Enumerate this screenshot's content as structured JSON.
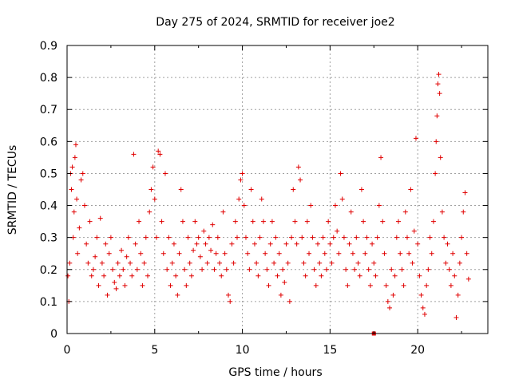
{
  "chart_data": {
    "type": "scatter",
    "title": "Day 275 of 2024, SRMTID for receiver joe2",
    "xlabel": "GPS time / hours",
    "ylabel": "SRMTID / TECUs",
    "xlim": [
      0,
      24
    ],
    "ylim": [
      0,
      0.9
    ],
    "xticks": [
      0,
      5,
      10,
      15,
      20
    ],
    "yticks": [
      0,
      0.1,
      0.2,
      0.3,
      0.4,
      0.5,
      0.6,
      0.7,
      0.8,
      0.9
    ],
    "xtick_labels": [
      "0",
      "5",
      "10",
      "15",
      "20"
    ],
    "ytick_labels": [
      "0",
      "0.1",
      "0.2",
      "0.3",
      "0.4",
      "0.5",
      "0.6",
      "0.7",
      "0.8",
      "0.9"
    ],
    "grid": true,
    "marker": "+",
    "color": "#e00000",
    "series": [
      {
        "name": "SRMTID",
        "points": [
          [
            0.05,
            0.18
          ],
          [
            0.1,
            0.1
          ],
          [
            0.15,
            0.22
          ],
          [
            0.2,
            0.5
          ],
          [
            0.25,
            0.45
          ],
          [
            0.3,
            0.52
          ],
          [
            0.35,
            0.3
          ],
          [
            0.4,
            0.38
          ],
          [
            0.45,
            0.55
          ],
          [
            0.5,
            0.59
          ],
          [
            0.55,
            0.42
          ],
          [
            0.6,
            0.25
          ],
          [
            0.7,
            0.33
          ],
          [
            0.8,
            0.48
          ],
          [
            0.9,
            0.5
          ],
          [
            1.0,
            0.4
          ],
          [
            1.1,
            0.28
          ],
          [
            1.2,
            0.22
          ],
          [
            1.3,
            0.35
          ],
          [
            1.4,
            0.18
          ],
          [
            1.5,
            0.2
          ],
          [
            1.6,
            0.24
          ],
          [
            1.7,
            0.3
          ],
          [
            1.8,
            0.15
          ],
          [
            1.9,
            0.36
          ],
          [
            2.0,
            0.22
          ],
          [
            2.1,
            0.18
          ],
          [
            2.2,
            0.28
          ],
          [
            2.3,
            0.12
          ],
          [
            2.4,
            0.25
          ],
          [
            2.5,
            0.3
          ],
          [
            2.6,
            0.2
          ],
          [
            2.7,
            0.16
          ],
          [
            2.8,
            0.14
          ],
          [
            2.9,
            0.22
          ],
          [
            3.0,
            0.18
          ],
          [
            3.1,
            0.26
          ],
          [
            3.2,
            0.2
          ],
          [
            3.3,
            0.15
          ],
          [
            3.4,
            0.24
          ],
          [
            3.5,
            0.3
          ],
          [
            3.6,
            0.22
          ],
          [
            3.7,
            0.18
          ],
          [
            3.8,
            0.56
          ],
          [
            3.9,
            0.28
          ],
          [
            4.0,
            0.2
          ],
          [
            4.1,
            0.35
          ],
          [
            4.2,
            0.25
          ],
          [
            4.3,
            0.15
          ],
          [
            4.4,
            0.22
          ],
          [
            4.5,
            0.3
          ],
          [
            4.6,
            0.18
          ],
          [
            4.7,
            0.38
          ],
          [
            4.8,
            0.45
          ],
          [
            4.9,
            0.52
          ],
          [
            5.0,
            0.42
          ],
          [
            5.1,
            0.3
          ],
          [
            5.2,
            0.57
          ],
          [
            5.3,
            0.56
          ],
          [
            5.4,
            0.35
          ],
          [
            5.5,
            0.25
          ],
          [
            5.6,
            0.5
          ],
          [
            5.7,
            0.2
          ],
          [
            5.8,
            0.3
          ],
          [
            5.9,
            0.15
          ],
          [
            6.0,
            0.22
          ],
          [
            6.1,
            0.28
          ],
          [
            6.2,
            0.18
          ],
          [
            6.3,
            0.12
          ],
          [
            6.4,
            0.25
          ],
          [
            6.5,
            0.45
          ],
          [
            6.6,
            0.35
          ],
          [
            6.7,
            0.2
          ],
          [
            6.8,
            0.15
          ],
          [
            6.9,
            0.3
          ],
          [
            7.0,
            0.22
          ],
          [
            7.1,
            0.18
          ],
          [
            7.2,
            0.26
          ],
          [
            7.3,
            0.35
          ],
          [
            7.4,
            0.28
          ],
          [
            7.5,
            0.3
          ],
          [
            7.6,
            0.24
          ],
          [
            7.7,
            0.2
          ],
          [
            7.8,
            0.32
          ],
          [
            7.9,
            0.28
          ],
          [
            8.0,
            0.22
          ],
          [
            8.1,
            0.3
          ],
          [
            8.2,
            0.26
          ],
          [
            8.3,
            0.34
          ],
          [
            8.4,
            0.2
          ],
          [
            8.5,
            0.25
          ],
          [
            8.6,
            0.3
          ],
          [
            8.7,
            0.22
          ],
          [
            8.8,
            0.18
          ],
          [
            8.9,
            0.38
          ],
          [
            9.0,
            0.25
          ],
          [
            9.1,
            0.2
          ],
          [
            9.2,
            0.12
          ],
          [
            9.3,
            0.1
          ],
          [
            9.4,
            0.28
          ],
          [
            9.5,
            0.22
          ],
          [
            9.6,
            0.35
          ],
          [
            9.7,
            0.3
          ],
          [
            9.8,
            0.42
          ],
          [
            9.9,
            0.48
          ],
          [
            10.0,
            0.5
          ],
          [
            10.1,
            0.4
          ],
          [
            10.2,
            0.3
          ],
          [
            10.3,
            0.25
          ],
          [
            10.4,
            0.2
          ],
          [
            10.5,
            0.45
          ],
          [
            10.6,
            0.35
          ],
          [
            10.7,
            0.28
          ],
          [
            10.8,
            0.22
          ],
          [
            10.9,
            0.18
          ],
          [
            11.0,
            0.3
          ],
          [
            11.1,
            0.42
          ],
          [
            11.2,
            0.35
          ],
          [
            11.3,
            0.25
          ],
          [
            11.4,
            0.2
          ],
          [
            11.5,
            0.15
          ],
          [
            11.6,
            0.28
          ],
          [
            11.7,
            0.35
          ],
          [
            11.8,
            0.22
          ],
          [
            11.9,
            0.3
          ],
          [
            12.0,
            0.18
          ],
          [
            12.1,
            0.25
          ],
          [
            12.2,
            0.12
          ],
          [
            12.3,
            0.2
          ],
          [
            12.4,
            0.16
          ],
          [
            12.5,
            0.28
          ],
          [
            12.6,
            0.22
          ],
          [
            12.7,
            0.1
          ],
          [
            12.8,
            0.3
          ],
          [
            12.9,
            0.45
          ],
          [
            13.0,
            0.35
          ],
          [
            13.1,
            0.28
          ],
          [
            13.2,
            0.52
          ],
          [
            13.3,
            0.48
          ],
          [
            13.4,
            0.3
          ],
          [
            13.5,
            0.22
          ],
          [
            13.6,
            0.18
          ],
          [
            13.7,
            0.35
          ],
          [
            13.8,
            0.25
          ],
          [
            13.9,
            0.4
          ],
          [
            14.0,
            0.3
          ],
          [
            14.1,
            0.2
          ],
          [
            14.2,
            0.15
          ],
          [
            14.3,
            0.28
          ],
          [
            14.4,
            0.22
          ],
          [
            14.5,
            0.18
          ],
          [
            14.6,
            0.3
          ],
          [
            14.7,
            0.25
          ],
          [
            14.8,
            0.2
          ],
          [
            14.9,
            0.35
          ],
          [
            15.0,
            0.28
          ],
          [
            15.1,
            0.22
          ],
          [
            15.2,
            0.3
          ],
          [
            15.3,
            0.4
          ],
          [
            15.4,
            0.32
          ],
          [
            15.5,
            0.25
          ],
          [
            15.6,
            0.5
          ],
          [
            15.7,
            0.42
          ],
          [
            15.8,
            0.3
          ],
          [
            15.9,
            0.2
          ],
          [
            16.0,
            0.15
          ],
          [
            16.1,
            0.28
          ],
          [
            16.2,
            0.38
          ],
          [
            16.3,
            0.25
          ],
          [
            16.4,
            0.2
          ],
          [
            16.5,
            0.3
          ],
          [
            16.6,
            0.22
          ],
          [
            16.7,
            0.18
          ],
          [
            16.8,
            0.45
          ],
          [
            16.9,
            0.35
          ],
          [
            17.0,
            0.25
          ],
          [
            17.1,
            0.3
          ],
          [
            17.2,
            0.2
          ],
          [
            17.3,
            0.15
          ],
          [
            17.4,
            0.28
          ],
          [
            17.5,
            0.22
          ],
          [
            17.6,
            0.18
          ],
          [
            17.7,
            0.3
          ],
          [
            17.8,
            0.4
          ],
          [
            17.9,
            0.55
          ],
          [
            18.0,
            0.35
          ],
          [
            18.1,
            0.25
          ],
          [
            18.2,
            0.15
          ],
          [
            18.3,
            0.1
          ],
          [
            18.4,
            0.08
          ],
          [
            18.5,
            0.2
          ],
          [
            18.6,
            0.12
          ],
          [
            18.7,
            0.18
          ],
          [
            18.8,
            0.3
          ],
          [
            18.9,
            0.35
          ],
          [
            19.0,
            0.25
          ],
          [
            19.1,
            0.2
          ],
          [
            19.2,
            0.15
          ],
          [
            19.3,
            0.38
          ],
          [
            19.4,
            0.3
          ],
          [
            19.5,
            0.25
          ],
          [
            19.6,
            0.45
          ],
          [
            19.7,
            0.22
          ],
          [
            19.8,
            0.32
          ],
          [
            19.9,
            0.61
          ],
          [
            20.0,
            0.28
          ],
          [
            20.1,
            0.18
          ],
          [
            20.2,
            0.12
          ],
          [
            20.3,
            0.08
          ],
          [
            20.4,
            0.06
          ],
          [
            20.5,
            0.15
          ],
          [
            20.6,
            0.2
          ],
          [
            20.7,
            0.3
          ],
          [
            20.8,
            0.25
          ],
          [
            20.9,
            0.35
          ],
          [
            21.0,
            0.5
          ],
          [
            21.05,
            0.6
          ],
          [
            21.1,
            0.68
          ],
          [
            21.15,
            0.78
          ],
          [
            21.2,
            0.81
          ],
          [
            21.25,
            0.75
          ],
          [
            21.3,
            0.55
          ],
          [
            21.4,
            0.38
          ],
          [
            21.5,
            0.3
          ],
          [
            21.6,
            0.22
          ],
          [
            21.7,
            0.28
          ],
          [
            21.8,
            0.2
          ],
          [
            21.9,
            0.15
          ],
          [
            22.0,
            0.25
          ],
          [
            22.1,
            0.18
          ],
          [
            22.2,
            0.05
          ],
          [
            22.3,
            0.12
          ],
          [
            22.4,
            0.22
          ],
          [
            22.5,
            0.3
          ],
          [
            22.6,
            0.38
          ],
          [
            22.7,
            0.44
          ],
          [
            22.8,
            0.25
          ],
          [
            22.9,
            0.17
          ]
        ]
      }
    ],
    "annotations": [
      {
        "type": "marker",
        "shape": "square",
        "x": 17.5,
        "y": 0.0
      }
    ]
  }
}
